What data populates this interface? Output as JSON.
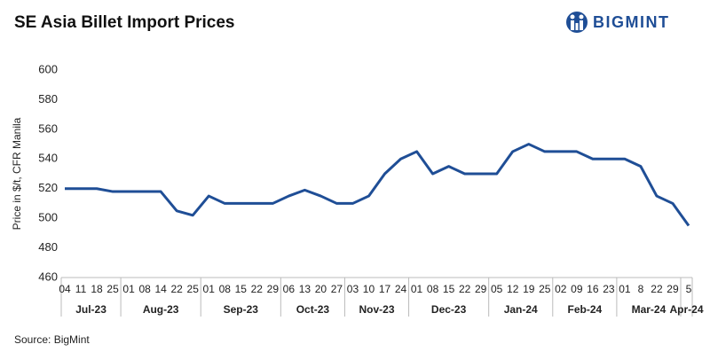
{
  "chart_data": {
    "type": "line",
    "title": "SE Asia Billet Import Prices",
    "logo": "BIGMINT",
    "y_label": "Price in $/t, CFR Manila",
    "source": "Source: BigMint",
    "categories": [
      "04",
      "11",
      "18",
      "25",
      "01",
      "08",
      "14",
      "22",
      "25",
      "01",
      "08",
      "15",
      "22",
      "29",
      "06",
      "13",
      "20",
      "27",
      "03",
      "10",
      "17",
      "24",
      "01",
      "08",
      "15",
      "22",
      "29",
      "05",
      "12",
      "19",
      "25",
      "02",
      "09",
      "16",
      "23",
      "01",
      "8",
      "22",
      "29",
      "5"
    ],
    "months": [
      "Jul-23",
      "Aug-23",
      "Sep-23",
      "Oct-23",
      "Nov-23",
      "Dec-23",
      "Jan-24",
      "Feb-24",
      "Mar-24",
      "Apr-24"
    ],
    "series": [
      {
        "name": "Price",
        "color": "#1f4e96",
        "values": [
          520,
          520,
          520,
          518,
          518,
          518,
          518,
          505,
          502,
          515,
          510,
          510,
          510,
          510,
          515,
          519,
          515,
          510,
          510,
          515,
          530,
          540,
          545,
          530,
          535,
          530,
          530,
          530,
          545,
          550,
          545,
          545,
          545,
          540,
          540,
          540,
          535,
          515,
          510,
          495
        ]
      }
    ],
    "ylim": [
      460,
      600
    ],
    "yticks": [
      460,
      480,
      500,
      520,
      540,
      560,
      580,
      600
    ],
    "grid": false
  }
}
